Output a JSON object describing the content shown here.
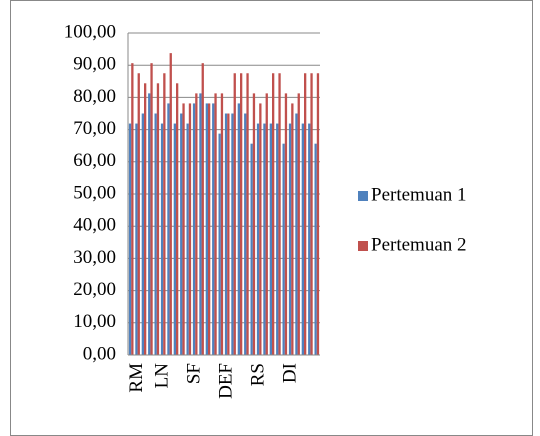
{
  "chart_data": {
    "type": "bar",
    "categories": [
      null,
      "RM",
      null,
      null,
      null,
      "LN",
      null,
      null,
      null,
      null,
      "SF",
      null,
      null,
      null,
      null,
      "DEF",
      null,
      null,
      null,
      null,
      "RS",
      null,
      null,
      null,
      null,
      "DI",
      null,
      null,
      null,
      null
    ],
    "series": [
      {
        "name": "Pertemuan 1",
        "color": "#4f81bd",
        "values": [
          71.88,
          71.88,
          75,
          81.25,
          75,
          71.88,
          78.13,
          71.88,
          75,
          71.88,
          78.13,
          81.25,
          78.13,
          78.13,
          68.75,
          75,
          75,
          78.13,
          75,
          65.63,
          71.88,
          71.88,
          71.88,
          71.88,
          65.63,
          71.88,
          75,
          71.88,
          71.88,
          65.63
        ]
      },
      {
        "name": "Pertemuan 2",
        "color": "#c0504d",
        "values": [
          90.63,
          87.5,
          84.38,
          90.63,
          84.38,
          87.5,
          93.75,
          84.38,
          78.13,
          78.13,
          81.25,
          90.63,
          78.13,
          81.25,
          81.25,
          75,
          87.5,
          87.5,
          87.5,
          81.25,
          78.13,
          81.25,
          87.5,
          87.5,
          81.25,
          78.13,
          81.25,
          87.5,
          87.5,
          87.5
        ]
      }
    ],
    "ylim": [
      0,
      100
    ],
    "yticks": [
      {
        "value": 0,
        "label": "0,00"
      },
      {
        "value": 10,
        "label": "10,00"
      },
      {
        "value": 20,
        "label": "20,00"
      },
      {
        "value": 30,
        "label": "30,00"
      },
      {
        "value": 40,
        "label": "40,00"
      },
      {
        "value": 50,
        "label": "50,00"
      },
      {
        "value": 60,
        "label": "60,00"
      },
      {
        "value": 70,
        "label": "70,00"
      },
      {
        "value": 80,
        "label": "80,00"
      },
      {
        "value": 90,
        "label": "90,00"
      },
      {
        "value": 100,
        "label": "100,00"
      }
    ],
    "grid": true,
    "legend": "right"
  }
}
